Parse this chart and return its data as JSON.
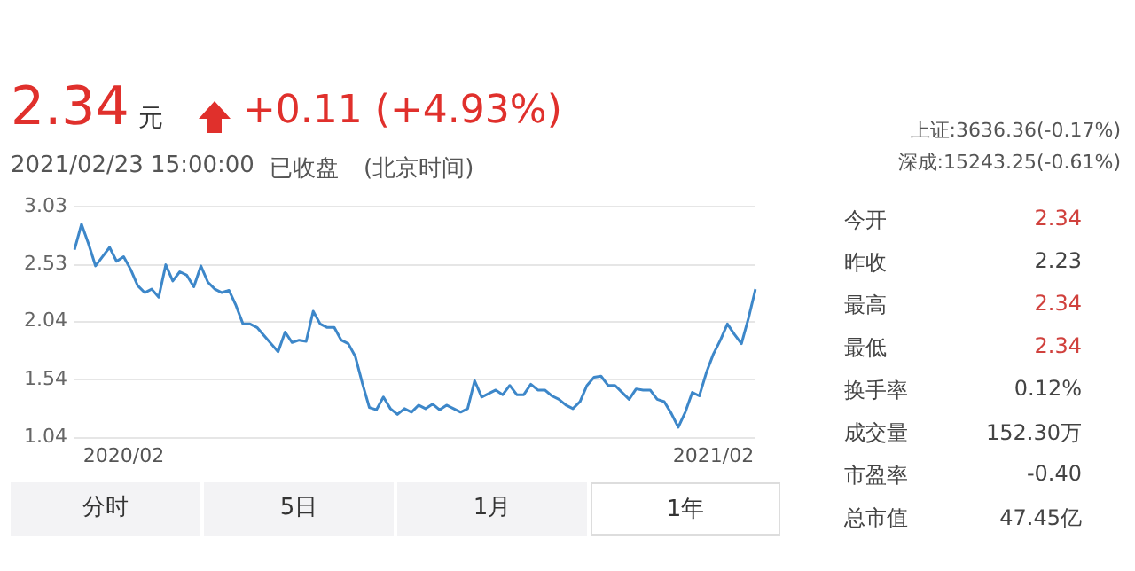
{
  "chart_data": {
    "type": "line",
    "categories": [
      null,
      null,
      null,
      null,
      null,
      null,
      null,
      "2020/02",
      null,
      null,
      null,
      null,
      null,
      null,
      null,
      null,
      null,
      null,
      null,
      null,
      null,
      null,
      null,
      null,
      null,
      null,
      null,
      null,
      null,
      null,
      null,
      null,
      null,
      null,
      null,
      null,
      null,
      null,
      null,
      null,
      null,
      null,
      null,
      null,
      null,
      null,
      null,
      null,
      null,
      null,
      null,
      null,
      null,
      null,
      null,
      null,
      null,
      null,
      null,
      null,
      null,
      null,
      null,
      null,
      null,
      null,
      null,
      null,
      null,
      null,
      null,
      null,
      null,
      null,
      null,
      null,
      null,
      null,
      null,
      null,
      null,
      null,
      null,
      null,
      null,
      null,
      null,
      null,
      null,
      null,
      null,
      "2021/02",
      null,
      null,
      null,
      null,
      null,
      null
    ],
    "series": [
      {
        "color": "#3d87c9",
        "values": [
          2.66,
          2.88,
          2.71,
          2.52,
          2.6,
          2.68,
          2.56,
          2.6,
          2.49,
          2.35,
          2.29,
          2.32,
          2.25,
          2.53,
          2.39,
          2.47,
          2.44,
          2.34,
          2.52,
          2.38,
          2.32,
          2.29,
          2.31,
          2.18,
          2.02,
          2.02,
          1.99,
          1.92,
          1.85,
          1.78,
          1.95,
          1.86,
          1.88,
          1.87,
          2.13,
          2.02,
          1.99,
          1.99,
          1.88,
          1.85,
          1.74,
          1.51,
          1.3,
          1.28,
          1.39,
          1.29,
          1.24,
          1.29,
          1.26,
          1.32,
          1.29,
          1.33,
          1.28,
          1.32,
          1.29,
          1.26,
          1.29,
          1.53,
          1.39,
          1.42,
          1.45,
          1.41,
          1.49,
          1.41,
          1.41,
          1.5,
          1.45,
          1.45,
          1.4,
          1.37,
          1.32,
          1.29,
          1.35,
          1.49,
          1.56,
          1.57,
          1.49,
          1.49,
          1.43,
          1.37,
          1.46,
          1.45,
          1.45,
          1.37,
          1.35,
          1.25,
          1.13,
          1.26,
          1.43,
          1.4,
          1.6,
          1.76,
          1.88,
          2.02,
          1.93,
          1.85,
          2.07,
          2.32
        ]
      }
    ],
    "ylim": [
      1.04,
      3.03
    ],
    "yticks": [
      1.04,
      1.54,
      2.04,
      2.53,
      3.03
    ],
    "grid": "y",
    "marker": "none",
    "line_style": "solid",
    "legend": false,
    "annotations": [
      "2.34",
      "元",
      "+0.11 (+4.93%)",
      "2021/02/23 15:00:00",
      "已收盘",
      "(北京时间)",
      "上证:3636.36(-0.17%)",
      "深成:15243.25(-0.61%)",
      "今开",
      "2.34",
      "昨收",
      "2.23",
      "最高",
      "2.34",
      "最低",
      "2.34",
      "换手率",
      "0.12%",
      "成交量",
      "152.30万",
      "市盈率",
      "-0.40",
      "总市值",
      "47.45亿",
      "分时",
      "5日",
      "1月",
      "1年"
    ]
  }
}
